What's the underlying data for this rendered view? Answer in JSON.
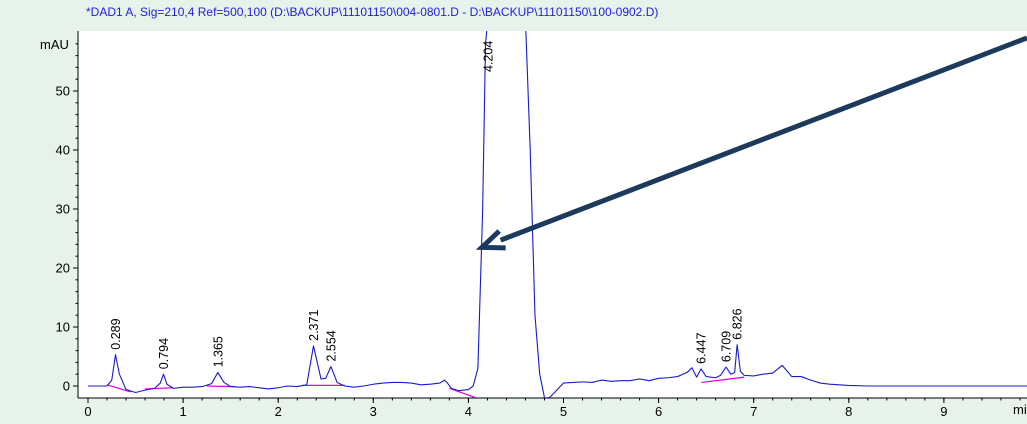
{
  "chart_data": {
    "type": "line",
    "title": "*DAD1 A, Sig=210,4 Ref=500,100 (D:\\BACKUP\\11101150\\004-0801.D - D:\\BACKUP\\11101150\\100-0902.D)",
    "ylabel": "mAU",
    "xlabel": "mi",
    "xlim": [
      0,
      10
    ],
    "ylim": [
      -2,
      60
    ],
    "x_ticks": [
      0,
      1,
      2,
      3,
      4,
      5,
      6,
      7,
      8,
      9
    ],
    "y_ticks": [
      0,
      10,
      20,
      30,
      40,
      50
    ],
    "grid": false,
    "colors": {
      "trace": "#1a1acc",
      "baseline": "#e000e0",
      "title": "#1f1fe0",
      "arrow": "#1b3a5c",
      "axis": "#000000"
    },
    "peak_labels": [
      "0.289",
      "0.794",
      "1.365",
      "2.371",
      "2.554",
      "4.204",
      "6.447",
      "6.709",
      "6.826"
    ],
    "peak_label_values": [
      0.289,
      0.794,
      1.365,
      2.371,
      2.554,
      4.204,
      6.447,
      6.709,
      6.826
    ],
    "series": [
      {
        "x": [
          0.0,
          0.1,
          0.2,
          0.25,
          0.289,
          0.33,
          0.4,
          0.5,
          0.6,
          0.7,
          0.76,
          0.794,
          0.83,
          0.9,
          1.0,
          1.1,
          1.2,
          1.3,
          1.365,
          1.43,
          1.5,
          1.6,
          1.7,
          1.8,
          1.9,
          2.0,
          2.1,
          2.2,
          2.3,
          2.371,
          2.45,
          2.5,
          2.554,
          2.62,
          2.7,
          2.8,
          2.9,
          3.0,
          3.1,
          3.2,
          3.3,
          3.4,
          3.5,
          3.6,
          3.7,
          3.75,
          3.78,
          3.82,
          3.9,
          4.0,
          4.05,
          4.1,
          4.15,
          4.18,
          4.204,
          4.25,
          4.3,
          4.4,
          4.5,
          4.6,
          4.65,
          4.7,
          4.75,
          4.8,
          4.85,
          4.9,
          5.0,
          5.1,
          5.2,
          5.3,
          5.4,
          5.5,
          5.6,
          5.7,
          5.8,
          5.9,
          6.0,
          6.1,
          6.2,
          6.3,
          6.35,
          6.4,
          6.447,
          6.5,
          6.6,
          6.65,
          6.709,
          6.76,
          6.8,
          6.826,
          6.86,
          6.9,
          7.0,
          7.1,
          7.2,
          7.3,
          7.4,
          7.5,
          7.6,
          7.7,
          7.8,
          7.9,
          8.0,
          8.2,
          8.4,
          8.6,
          8.8,
          9.0,
          9.2,
          9.4,
          9.6,
          9.8,
          10.0
        ],
        "values": [
          0.0,
          0.0,
          0.0,
          1.0,
          5.3,
          2.0,
          -0.6,
          -1.1,
          -0.7,
          -0.4,
          0.5,
          2.0,
          0.3,
          -0.4,
          -0.2,
          -0.2,
          -0.1,
          0.4,
          2.3,
          0.6,
          -0.1,
          -0.2,
          -0.1,
          -0.3,
          -0.5,
          -0.3,
          0.0,
          -0.1,
          0.2,
          6.8,
          1.2,
          1.3,
          3.3,
          0.6,
          0.0,
          -0.2,
          0.0,
          0.3,
          0.5,
          0.6,
          0.6,
          0.5,
          0.2,
          0.3,
          0.5,
          1.0,
          0.5,
          -0.4,
          -0.8,
          -0.6,
          0.0,
          3.0,
          30.0,
          58.0,
          62.0,
          62.0,
          62.0,
          62.0,
          62.0,
          62.0,
          40.0,
          12.0,
          2.0,
          -2.0,
          -2.0,
          -1.2,
          0.5,
          0.6,
          0.7,
          0.6,
          1.0,
          0.8,
          0.9,
          0.9,
          1.2,
          0.9,
          1.3,
          1.4,
          1.6,
          2.3,
          3.1,
          1.5,
          2.9,
          1.6,
          1.4,
          1.8,
          3.2,
          2.0,
          2.3,
          7.0,
          2.5,
          1.8,
          1.7,
          2.0,
          2.2,
          3.5,
          1.6,
          1.6,
          1.0,
          0.5,
          0.3,
          0.2,
          0.1,
          0.0,
          0.0,
          0.0,
          0.0,
          0.0,
          0.0,
          0.0,
          0.0,
          0.0,
          0.0
        ]
      }
    ],
    "baseline_segments": [
      {
        "x": [
          0.2,
          0.45
        ],
        "values": [
          0.2,
          -1.0
        ]
      },
      {
        "x": [
          0.6,
          0.9
        ],
        "values": [
          -0.5,
          -0.3
        ]
      },
      {
        "x": [
          1.25,
          1.55
        ],
        "values": [
          0.0,
          -0.1
        ]
      },
      {
        "x": [
          2.25,
          2.7
        ],
        "values": [
          0.1,
          0.1
        ]
      },
      {
        "x": [
          3.8,
          4.08
        ],
        "values": [
          -0.4,
          -2.0
        ]
      },
      {
        "x": [
          6.45,
          6.9
        ],
        "values": [
          0.6,
          1.5
        ]
      }
    ],
    "arrow": {
      "from_x": 10.0,
      "from_y": 59.0,
      "to_x": 4.1,
      "to_y": 23.5
    }
  }
}
